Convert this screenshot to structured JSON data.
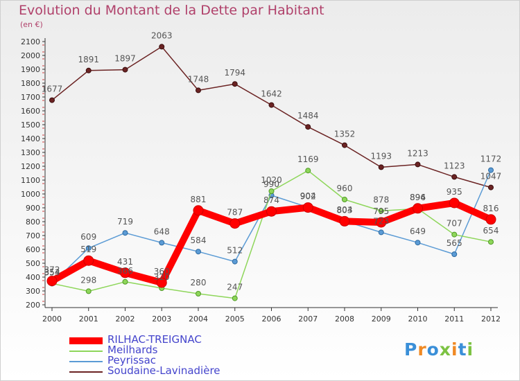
{
  "title": "Evolution du Montant de la Dette par Habitant",
  "unit": "(en €)",
  "logo_text": "Proxiti",
  "chart_data": {
    "type": "line",
    "title": "Evolution du Montant de la Dette par Habitant",
    "ylabel": "(en €)",
    "xlabel": "",
    "x": [
      "2000",
      "2001",
      "2002",
      "2003",
      "2004",
      "2005",
      "2006",
      "2007",
      "2008",
      "2009",
      "2010",
      "2011",
      "2012"
    ],
    "y_ticks": [
      200,
      300,
      400,
      500,
      600,
      700,
      800,
      900,
      1000,
      1100,
      1200,
      1300,
      1400,
      1500,
      1600,
      1700,
      1800,
      1900,
      2000,
      2100
    ],
    "ylim": [
      200,
      2100
    ],
    "grid": false,
    "legend_position": "bottom-left",
    "series": [
      {
        "name": "Soudaine-Lavinadière",
        "color": "#6b2323",
        "values": [
          1677,
          1891,
          1897,
          2063,
          1748,
          1794,
          1642,
          1484,
          1352,
          1193,
          1213,
          1123,
          1047
        ]
      },
      {
        "name": "Peyrissac",
        "color": "#5b9bd5",
        "values": [
          353,
          609,
          719,
          648,
          584,
          512,
          990,
          904,
          804,
          723,
          649,
          565,
          1172
        ]
      },
      {
        "name": "Meilhards",
        "color": "#8ed65a",
        "values": [
          354,
          298,
          366,
          320,
          280,
          247,
          1020,
          1169,
          960,
          878,
          894,
          707,
          654
        ]
      },
      {
        "name": "RILHAC-TREIGNAC",
        "color": "#ff0000",
        "values": [
          372,
          519,
          431,
          360,
          881,
          787,
          874,
          902,
          803,
          795,
          896,
          935,
          816
        ]
      }
    ]
  }
}
